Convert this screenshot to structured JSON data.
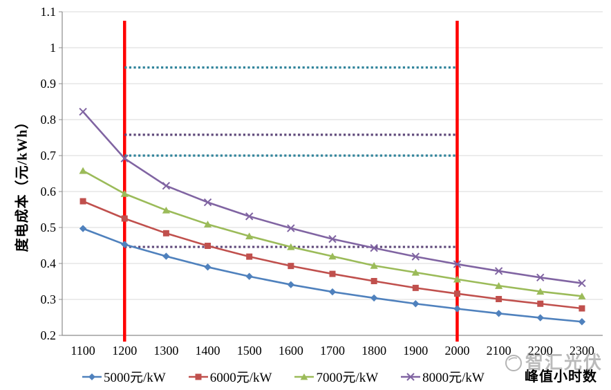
{
  "chart_data": {
    "type": "line",
    "title": "",
    "xlabel": "峰值小时数",
    "ylabel": "度电成本（元/kWh）",
    "x_categories": [
      "1100",
      "1200",
      "1300",
      "1400",
      "1500",
      "1600",
      "1700",
      "1800",
      "1900",
      "2000",
      "2100",
      "2200",
      "2300"
    ],
    "y_tick_labels": [
      "0.2",
      "0.3",
      "0.4",
      "0.5",
      "0.6",
      "0.7",
      "0.8",
      "0.9",
      "1",
      "1.1"
    ],
    "ylim": [
      0.2,
      1.1
    ],
    "grid": "horizontal-only",
    "gridline_color": "#D9D9D9",
    "axis_line_color": "#8C8C8C",
    "legend_position": "bottom",
    "series": [
      {
        "name": "5000元/kW",
        "marker": "diamond",
        "color": "#4F81BD",
        "values": [
          0.497,
          0.453,
          0.42,
          0.39,
          0.364,
          0.341,
          0.321,
          0.304,
          0.288,
          0.274,
          0.261,
          0.249,
          0.238
        ]
      },
      {
        "name": "6000元/kW",
        "marker": "square",
        "color": "#C0504D",
        "values": [
          0.573,
          0.525,
          0.484,
          0.449,
          0.419,
          0.393,
          0.371,
          0.351,
          0.332,
          0.316,
          0.301,
          0.288,
          0.275
        ]
      },
      {
        "name": "7000元/kW",
        "marker": "triangle",
        "color": "#9BBB59",
        "values": [
          0.658,
          0.594,
          0.548,
          0.509,
          0.476,
          0.446,
          0.42,
          0.394,
          0.375,
          0.356,
          0.338,
          0.322,
          0.309
        ]
      },
      {
        "name": "8000元/kW",
        "marker": "x",
        "color": "#8064A2",
        "values": [
          0.822,
          0.692,
          0.616,
          0.57,
          0.531,
          0.498,
          0.468,
          0.443,
          0.419,
          0.398,
          0.379,
          0.361,
          0.345
        ]
      }
    ],
    "reference_lines": {
      "vertical_solid": [
        {
          "x": "1200",
          "color": "#FF0000"
        },
        {
          "x": "2000",
          "color": "#FF0000"
        }
      ],
      "horizontal_dotted": [
        {
          "y": 0.945,
          "x_from": "1200",
          "x_to": "2000",
          "color": "#31849B"
        },
        {
          "y": 0.758,
          "x_from": "1200",
          "x_to": "2000",
          "color": "#5F497A"
        },
        {
          "y": 0.7,
          "x_from": "1200",
          "x_to": "2000",
          "color": "#31849B"
        },
        {
          "y": 0.446,
          "x_from": "1200",
          "x_to": "2000",
          "color": "#5F497A"
        }
      ]
    }
  },
  "watermark": {
    "text": "智汇光伏"
  }
}
